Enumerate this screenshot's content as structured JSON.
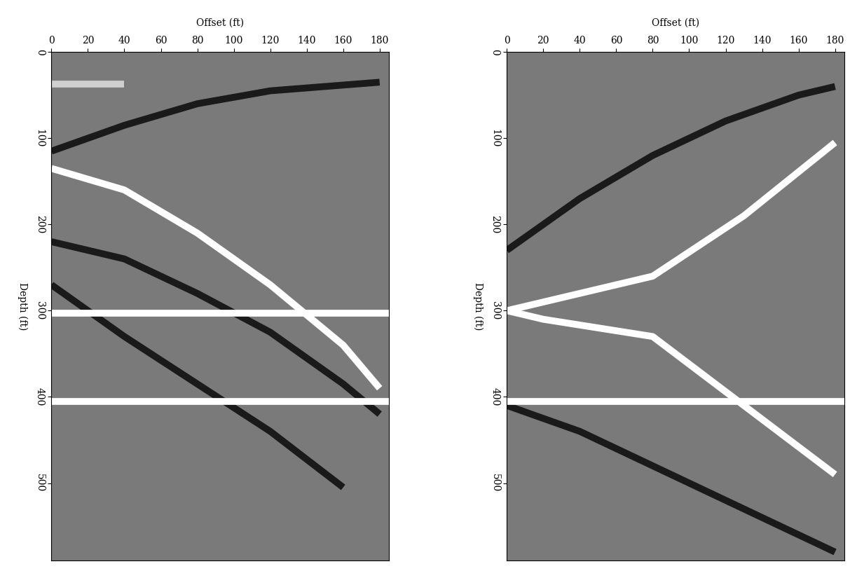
{
  "chart_data": [
    {
      "type": "line",
      "xlabel": "Offset (ft)",
      "ylabel": "Depth (ft)",
      "xlim": [
        0,
        185
      ],
      "xticks": [
        0,
        20,
        40,
        60,
        80,
        100,
        120,
        140,
        160,
        180
      ],
      "ylim": [
        590,
        0
      ],
      "yticks": [
        0,
        100,
        200,
        300,
        400,
        500
      ],
      "color": "#7a7a7a",
      "series": [
        {
          "color": "#1a1a1a",
          "x": [
            0,
            40,
            80,
            120,
            180
          ],
          "values": [
            115,
            85,
            60,
            45,
            35
          ]
        },
        {
          "color": "#1a1a1a",
          "x": [
            0,
            40,
            80,
            120,
            160,
            180
          ],
          "values": [
            220,
            240,
            280,
            325,
            385,
            420
          ]
        },
        {
          "color": "#1a1a1a",
          "x": [
            0,
            40,
            80,
            120,
            160
          ],
          "values": [
            270,
            330,
            385,
            440,
            505
          ]
        },
        {
          "color": "#ffffff",
          "x": [
            0,
            40,
            80,
            120,
            160,
            180
          ],
          "values": [
            135,
            160,
            210,
            270,
            340,
            390
          ]
        },
        {
          "color": "#ffffff",
          "x": [
            0,
            185
          ],
          "values": [
            303,
            303
          ]
        },
        {
          "color": "#ffffff",
          "x": [
            0,
            185
          ],
          "values": [
            405,
            405
          ]
        },
        {
          "color": "#d0d0d0",
          "x": [
            0,
            40
          ],
          "values": [
            37,
            37
          ]
        }
      ]
    },
    {
      "type": "line",
      "xlabel": "Offset (ft)",
      "ylabel": "Depth (ft)",
      "xlim": [
        0,
        185
      ],
      "xticks": [
        0,
        20,
        40,
        60,
        80,
        100,
        120,
        140,
        160,
        180
      ],
      "ylim": [
        590,
        0
      ],
      "yticks": [
        0,
        100,
        200,
        300,
        400,
        500
      ],
      "color": "#7a7a7a",
      "series": [
        {
          "color": "#1a1a1a",
          "x": [
            0,
            40,
            80,
            120,
            160,
            180
          ],
          "values": [
            230,
            170,
            120,
            80,
            50,
            40
          ]
        },
        {
          "color": "#1a1a1a",
          "x": [
            0,
            40,
            80,
            120,
            160,
            180
          ],
          "values": [
            410,
            440,
            480,
            520,
            560,
            580
          ]
        },
        {
          "color": "#ffffff",
          "x": [
            0,
            20,
            80,
            130,
            180
          ],
          "values": [
            300,
            290,
            260,
            190,
            105
          ]
        },
        {
          "color": "#ffffff",
          "x": [
            0,
            20,
            80,
            130,
            180
          ],
          "values": [
            300,
            310,
            330,
            410,
            490
          ]
        },
        {
          "color": "#ffffff",
          "x": [
            0,
            185
          ],
          "values": [
            405,
            405
          ]
        }
      ]
    }
  ]
}
